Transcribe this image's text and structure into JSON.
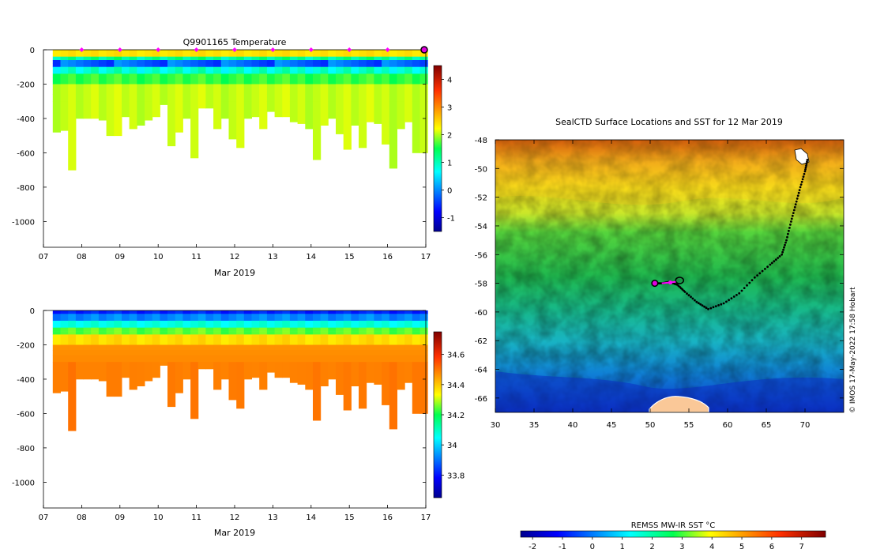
{
  "chart_data": [
    {
      "type": "heatmap",
      "title": "Q9901165  Temperature",
      "xlabel": "Mar 2019",
      "x_ticks": [
        "07",
        "08",
        "09",
        "10",
        "11",
        "12",
        "13",
        "14",
        "15",
        "16",
        "17"
      ],
      "y_ticks": [
        "0",
        "-200",
        "-400",
        "-600",
        "-800",
        "-1000"
      ],
      "ylim": [
        -1150,
        0
      ],
      "xlim": [
        7,
        17
      ],
      "colorbar_ticks": [
        "-1",
        "0",
        "1",
        "2",
        "3",
        "4"
      ],
      "colorbar_range": [
        -1.5,
        4.5
      ],
      "profile_days": [
        7.35,
        7.55,
        7.75,
        7.95,
        8.15,
        8.35,
        8.55,
        8.75,
        8.95,
        9.15,
        9.35,
        9.55,
        9.75,
        9.95,
        10.15,
        10.35,
        10.55,
        10.75,
        10.95,
        11.15,
        11.35,
        11.55,
        11.75,
        11.95,
        12.15,
        12.35,
        12.55,
        12.75,
        12.95,
        13.15,
        13.35,
        13.55,
        13.75,
        13.95,
        14.15,
        14.35,
        14.55,
        14.75,
        14.95,
        15.15,
        15.35,
        15.55,
        15.75,
        15.95,
        16.15,
        16.35,
        16.55,
        16.75,
        16.95
      ],
      "profile_max_depth": [
        480,
        470,
        700,
        400,
        400,
        400,
        410,
        500,
        500,
        390,
        460,
        440,
        410,
        390,
        320,
        560,
        480,
        400,
        630,
        340,
        340,
        460,
        400,
        520,
        570,
        400,
        390,
        460,
        360,
        390,
        390,
        420,
        430,
        460,
        640,
        440,
        400,
        490,
        580,
        440,
        570,
        420,
        430,
        550,
        690,
        460,
        420,
        600,
        600
      ],
      "surface_markers_days": [
        8,
        9,
        10,
        11,
        12,
        13,
        14,
        15,
        16
      ],
      "last_position_day": 17
    },
    {
      "type": "heatmap",
      "title": "",
      "xlabel": "Mar 2019",
      "x_ticks": [
        "07",
        "08",
        "09",
        "10",
        "11",
        "12",
        "13",
        "14",
        "15",
        "16",
        "17"
      ],
      "y_ticks": [
        "0",
        "-200",
        "-400",
        "-600",
        "-800",
        "-1000"
      ],
      "ylim": [
        -1150,
        0
      ],
      "xlim": [
        7,
        17
      ],
      "colorbar_ticks": [
        "33.8",
        "34",
        "34.2",
        "34.4",
        "34.6"
      ],
      "colorbar_range": [
        33.65,
        34.75
      ]
    },
    {
      "type": "map",
      "title": "SealCTD Surface Locations and SST for 12 Mar 2019",
      "x_ticks": [
        "30",
        "35",
        "40",
        "45",
        "50",
        "55",
        "60",
        "65",
        "70"
      ],
      "y_ticks": [
        "-48",
        "-50",
        "-52",
        "-54",
        "-56",
        "-58",
        "-60",
        "-62",
        "-64",
        "-66"
      ],
      "xlim": [
        30,
        75
      ],
      "ylim": [
        -67,
        -48
      ],
      "colorbar_label": "REMSS MW-IR SST °C",
      "colorbar_ticks": [
        "-2",
        "-1",
        "0",
        "1",
        "2",
        "3",
        "4",
        "5",
        "6",
        "7"
      ],
      "colorbar_range": [
        -2.4,
        7.8
      ],
      "track": [
        [
          70.3,
          -49.4
        ],
        [
          70,
          -50.2
        ],
        [
          69.4,
          -51.3
        ],
        [
          68.8,
          -52.5
        ],
        [
          68.2,
          -53.7
        ],
        [
          67.6,
          -55
        ],
        [
          67,
          -56
        ],
        [
          65.5,
          -56.7
        ],
        [
          63.5,
          -57.6
        ],
        [
          61.5,
          -58.7
        ],
        [
          59.5,
          -59.4
        ],
        [
          57.5,
          -59.8
        ],
        [
          56,
          -59.3
        ],
        [
          54.5,
          -58.6
        ],
        [
          53.5,
          -58.1
        ],
        [
          52.5,
          -57.9
        ],
        [
          51.5,
          -58
        ],
        [
          50.6,
          -58
        ]
      ],
      "current_position": [
        50.6,
        -58.0
      ],
      "copyright": "© IMOS 17-May-2022 17:58 Hobart"
    }
  ]
}
